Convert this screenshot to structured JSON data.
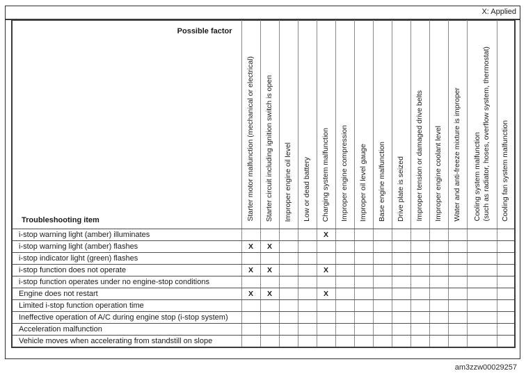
{
  "legend": "X: Applied",
  "figure_id": "am3zzw00029257",
  "table": {
    "corner": {
      "top_label": "Possible factor",
      "bottom_label": "Troubleshooting item"
    },
    "mark": "X",
    "factors": [
      "Starter motor malfunction (mechanical or electrical)",
      "Starter circuit including ignition switch is open",
      "Improper engine oil level",
      "Low or dead battery",
      "Charging system malfunction",
      "Improper engine compression",
      "Improper oil level gauge",
      "Base engine malfunction",
      "Drive plate is seized",
      "Improper tension or damaged drive belts",
      "Improper engine coolant level",
      "Water and anti-freeze mixture is improper",
      "Cooling system malfunction\n(such as radiator, hoses, overflow system, thermostat)",
      "Cooling fan system malfunction"
    ],
    "rows": [
      {
        "item": "i-stop warning light (amber) illuminates",
        "applied": [
          5
        ]
      },
      {
        "item": "i-stop warning light (amber) flashes",
        "applied": [
          1,
          2
        ]
      },
      {
        "item": "i-stop indicator light (green) flashes",
        "applied": []
      },
      {
        "item": "i-stop function does not operate",
        "applied": [
          1,
          2,
          5
        ]
      },
      {
        "item": "i-stop function operates under no engine-stop conditions",
        "applied": []
      },
      {
        "item": "Engine does not restart",
        "applied": [
          1,
          2,
          5
        ]
      },
      {
        "item": "Limited i-stop function operation time",
        "applied": []
      },
      {
        "item": "Ineffective operation of A/C during engine stop (i-stop system)",
        "applied": []
      },
      {
        "item": "Acceleration malfunction",
        "applied": []
      },
      {
        "item": "Vehicle moves when accelerating from standstill on slope",
        "applied": []
      }
    ]
  }
}
